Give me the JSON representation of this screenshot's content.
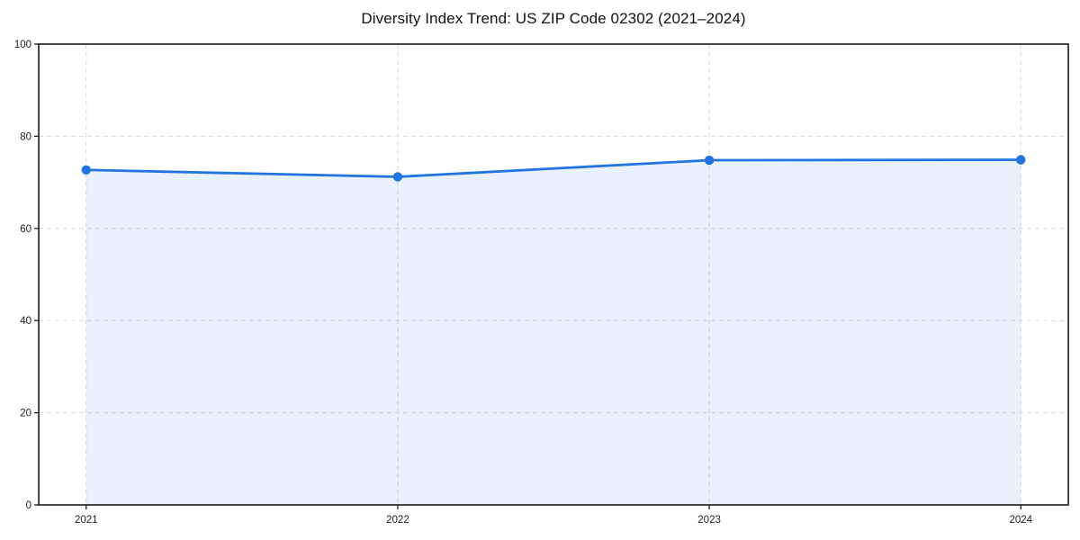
{
  "chart_data": {
    "type": "line",
    "title": "Diversity Index Trend: US ZIP Code 02302 (2021–2024)",
    "categories": [
      "2021",
      "2022",
      "2023",
      "2024"
    ],
    "series": [
      {
        "name": "Diversity Index",
        "values": [
          72.7,
          71.2,
          74.8,
          74.9
        ]
      }
    ],
    "xlabel": "",
    "ylabel": "",
    "ylim": [
      0,
      100
    ],
    "yticks": [
      0,
      20,
      40,
      60,
      80,
      100
    ],
    "grid": "dashed gridlines on both axes",
    "legend_position": "none",
    "area_fill": true,
    "marker": "filled-circle",
    "colors": {
      "line": "#2274e1",
      "marker": "#2274e1",
      "fill": "rgba(34,116,225,0.10)",
      "grid": "#d9d9d9",
      "spine": "#1a1a1a",
      "tick_text": "#1f1f1f",
      "background": "#ffffff"
    }
  }
}
